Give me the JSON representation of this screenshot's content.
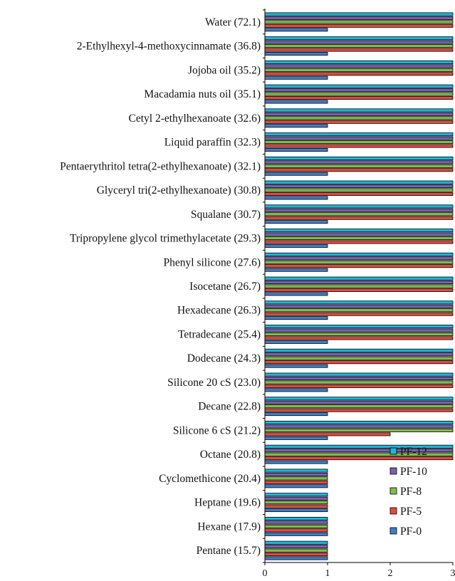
{
  "chart_data": {
    "type": "bar",
    "orientation": "horizontal",
    "title": "",
    "xlabel": "",
    "ylabel": "",
    "xlim": [
      0,
      3
    ],
    "xticks": [
      "0",
      "1",
      "2",
      "3"
    ],
    "grid": false,
    "legend_position": "bottom-right",
    "categories": [
      "Water (72.1)",
      "2-Ethylhexyl-4-methoxycinnamate (36.8)",
      "Jojoba oil (35.2)",
      "Macadamia nuts oil (35.1)",
      "Cetyl 2-ethylhexanoate (32.6)",
      "Liquid paraffin (32.3)",
      "Pentaerythritol tetra(2-ethylhexanoate) (32.1)",
      "Glyceryl tri(2-ethylhexanoate) (30.8)",
      "Squalane (30.7)",
      "Tripropylene glycol trimethylacetate (29.3)",
      "Phenyl silicone (27.6)",
      "Isocetane (26.7)",
      "Hexadecane (26.3)",
      "Tetradecane (25.4)",
      "Dodecane (24.3)",
      "Silicone 20 cS (23.0)",
      "Decane (22.8)",
      "Silicone 6 cS (21.2)",
      "Octane (20.8)",
      "Cyclomethicone (20.4)",
      "Heptane (19.6)",
      "Hexane (17.9)",
      "Pentane (15.7)"
    ],
    "series": [
      {
        "name": "PF-12",
        "color": "#1fb5d6",
        "values": [
          3,
          3,
          3,
          3,
          3,
          3,
          3,
          3,
          3,
          3,
          3,
          3,
          3,
          3,
          3,
          3,
          3,
          3,
          3,
          1,
          1,
          1,
          1
        ]
      },
      {
        "name": "PF-10",
        "color": "#7b5fb3",
        "values": [
          3,
          3,
          3,
          3,
          3,
          3,
          3,
          3,
          3,
          3,
          3,
          3,
          3,
          3,
          3,
          3,
          3,
          3,
          3,
          1,
          1,
          1,
          1
        ]
      },
      {
        "name": "PF-8",
        "color": "#7fbf4d",
        "values": [
          3,
          3,
          3,
          3,
          3,
          3,
          3,
          3,
          3,
          3,
          3,
          3,
          3,
          3,
          3,
          3,
          3,
          3,
          3,
          1,
          1,
          1,
          1
        ]
      },
      {
        "name": "PF-5",
        "color": "#e34a3f",
        "values": [
          3,
          3,
          3,
          3,
          3,
          3,
          3,
          3,
          3,
          3,
          3,
          3,
          3,
          3,
          3,
          3,
          3,
          2,
          3,
          1,
          1,
          1,
          1
        ]
      },
      {
        "name": "PF-0",
        "color": "#3f7fc9",
        "values": [
          1,
          1,
          1,
          1,
          1,
          1,
          1,
          1,
          1,
          1,
          1,
          1,
          1,
          1,
          1,
          1,
          1,
          1,
          1,
          1,
          1,
          1,
          1
        ]
      }
    ]
  }
}
